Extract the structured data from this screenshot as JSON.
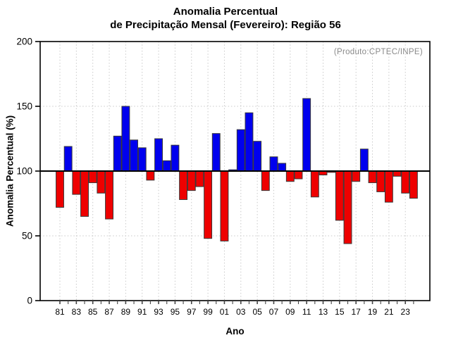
{
  "title": {
    "line1": "Anomalia Percentual",
    "line2": "de Precipitação Mensal (Fevereiro): Região 56"
  },
  "annotation": "(Produto:CPTEC/INPE)",
  "chart_data": {
    "type": "bar",
    "title": "Anomalia Percentual de Precipitação Mensal (Fevereiro): Região 56",
    "xlabel": "Ano",
    "ylabel": "Anomalia Percentual (%)",
    "ylim": [
      0,
      200
    ],
    "yticks": [
      0,
      50,
      100,
      150,
      200
    ],
    "baseline": 100,
    "grid": "dotted gray, horizontal at 50 and 150, vertical at labeled years",
    "legend_position": "none",
    "categories": [
      "81",
      "82",
      "83",
      "84",
      "85",
      "86",
      "87",
      "88",
      "89",
      "90",
      "91",
      "92",
      "93",
      "94",
      "95",
      "96",
      "97",
      "98",
      "99",
      "00",
      "01",
      "02",
      "03",
      "04",
      "05",
      "06",
      "07",
      "08",
      "09",
      "10",
      "11",
      "12",
      "13",
      "14",
      "15",
      "16",
      "17",
      "18",
      "19",
      "20",
      "21",
      "22",
      "23",
      "24"
    ],
    "x_tick_labels": [
      "81",
      "83",
      "85",
      "87",
      "89",
      "91",
      "93",
      "95",
      "97",
      "99",
      "01",
      "03",
      "05",
      "07",
      "09",
      "11",
      "13",
      "15",
      "17",
      "19",
      "21",
      "23"
    ],
    "values": [
      72,
      119,
      82,
      65,
      91,
      83,
      63,
      127,
      150,
      124,
      118,
      93,
      125,
      108,
      120,
      78,
      85,
      88,
      48,
      129,
      46,
      101,
      132,
      145,
      123,
      85,
      111,
      106,
      92,
      94,
      156,
      80,
      97,
      99,
      62,
      44,
      92,
      117,
      91,
      84,
      76,
      96,
      83,
      79
    ],
    "colors": {
      "above_baseline": "#0000ee",
      "below_baseline": "#ee0000",
      "bar_outline": "#3a3a3a",
      "gridline": "#c9c9c9",
      "frame": "#000000",
      "annotation_gray": "#8a8a8a"
    }
  }
}
